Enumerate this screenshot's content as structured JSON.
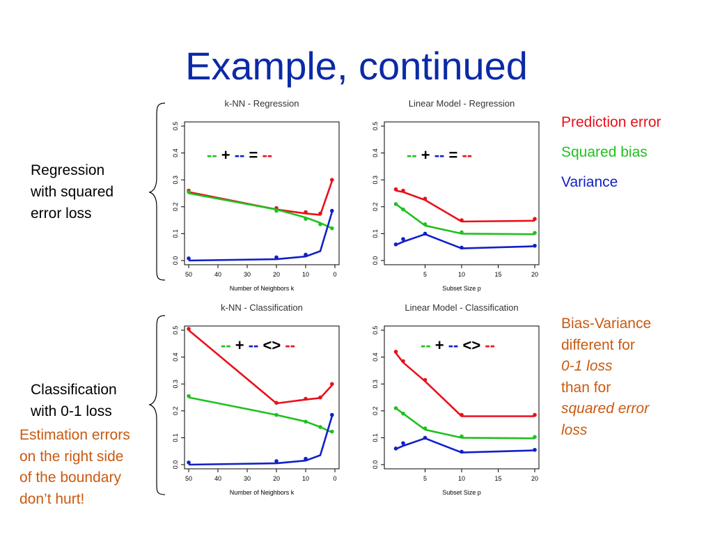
{
  "slide": {
    "title": "Example, continued",
    "row_labels": {
      "regression": [
        "Regression",
        "with squared",
        "error loss"
      ],
      "classification": [
        "Classification",
        "with 0-1 loss"
      ]
    },
    "estimation_note": [
      "Estimation errors",
      "on the right side",
      "of the boundary",
      "don’t hurt!"
    ],
    "legend": [
      {
        "label": "Prediction error",
        "color": "#e8111b"
      },
      {
        "label": "Squared bias",
        "color": "#1fc11f"
      },
      {
        "label": "Variance",
        "color": "#1020c8"
      }
    ],
    "bias_variance_note": {
      "line1": "Bias-Variance",
      "line2": "different for",
      "line3": "0-1 loss",
      "line4": "than for",
      "line5": "squared error",
      "line6": "loss"
    },
    "eq_symbols": {
      "dash": "--",
      "plus": "+",
      "equals": "=",
      "ne": "<>"
    }
  },
  "colors": {
    "prediction": "#e8111b",
    "bias": "#1fc11f",
    "variance": "#1020c8",
    "title": "#0b2aa6",
    "note": "#c85a11"
  },
  "chart_data": [
    {
      "id": "knn-reg",
      "type": "line",
      "title": "k-NN - Regression",
      "xlabel": "Number of Neighbors k",
      "ylabel": "",
      "xlim": [
        50,
        0
      ],
      "ylim": [
        0,
        0.5
      ],
      "xticks": [
        50,
        40,
        30,
        20,
        10,
        0
      ],
      "yticks": [
        0.0,
        0.1,
        0.2,
        0.3,
        0.4,
        0.5
      ],
      "equation": "=",
      "series": [
        {
          "color": "#e8111b",
          "line": [
            [
              50,
              0.255
            ],
            [
              20,
              0.19
            ],
            [
              10,
              0.175
            ],
            [
              5,
              0.17
            ],
            [
              1,
              0.295
            ]
          ],
          "points": [
            [
              50,
              0.26
            ],
            [
              20,
              0.195
            ],
            [
              10,
              0.18
            ],
            [
              5,
              0.175
            ],
            [
              1,
              0.3
            ]
          ]
        },
        {
          "color": "#1fc11f",
          "line": [
            [
              50,
              0.25
            ],
            [
              20,
              0.19
            ],
            [
              10,
              0.16
            ],
            [
              5,
              0.14
            ],
            [
              1,
              0.12
            ]
          ],
          "points": [
            [
              50,
              0.255
            ],
            [
              20,
              0.185
            ],
            [
              10,
              0.155
            ],
            [
              5,
              0.135
            ],
            [
              1,
              0.12
            ]
          ]
        },
        {
          "color": "#1020c8",
          "line": [
            [
              50,
              0.0
            ],
            [
              20,
              0.005
            ],
            [
              10,
              0.015
            ],
            [
              5,
              0.035
            ],
            [
              1,
              0.18
            ]
          ],
          "points": [
            [
              50,
              0.008
            ],
            [
              20,
              0.012
            ],
            [
              10,
              0.022
            ],
            [
              1,
              0.185
            ]
          ]
        }
      ]
    },
    {
      "id": "lin-reg",
      "type": "line",
      "title": "Linear Model - Regression",
      "xlabel": "Subset Size p",
      "ylabel": "",
      "xlim": [
        0,
        20
      ],
      "ylim": [
        0,
        0.5
      ],
      "xticks": [
        5,
        10,
        15,
        20
      ],
      "yticks": [
        0.0,
        0.1,
        0.2,
        0.3,
        0.4,
        0.5
      ],
      "equation": "=",
      "series": [
        {
          "color": "#e8111b",
          "line": [
            [
              1,
              0.26
            ],
            [
              2,
              0.255
            ],
            [
              5,
              0.225
            ],
            [
              10,
              0.145
            ],
            [
              20,
              0.148
            ]
          ],
          "points": [
            [
              1,
              0.265
            ],
            [
              2,
              0.26
            ],
            [
              5,
              0.23
            ],
            [
              10,
              0.15
            ],
            [
              20,
              0.155
            ]
          ]
        },
        {
          "color": "#1fc11f",
          "line": [
            [
              1,
              0.21
            ],
            [
              2,
              0.19
            ],
            [
              5,
              0.13
            ],
            [
              10,
              0.1
            ],
            [
              20,
              0.098
            ]
          ],
          "points": [
            [
              1,
              0.21
            ],
            [
              2,
              0.19
            ],
            [
              5,
              0.135
            ],
            [
              10,
              0.105
            ],
            [
              20,
              0.103
            ]
          ]
        },
        {
          "color": "#1020c8",
          "line": [
            [
              1,
              0.058
            ],
            [
              2,
              0.07
            ],
            [
              5,
              0.098
            ],
            [
              10,
              0.045
            ],
            [
              20,
              0.053
            ]
          ],
          "points": [
            [
              1,
              0.06
            ],
            [
              2,
              0.08
            ],
            [
              5,
              0.1
            ],
            [
              10,
              0.048
            ],
            [
              20,
              0.055
            ]
          ]
        }
      ]
    },
    {
      "id": "knn-cls",
      "type": "line",
      "title": "k-NN - Classification",
      "xlabel": "Number of Neighbors k",
      "ylabel": "",
      "xlim": [
        50,
        0
      ],
      "ylim": [
        0,
        0.5
      ],
      "xticks": [
        50,
        40,
        30,
        20,
        10,
        0
      ],
      "yticks": [
        0.0,
        0.1,
        0.2,
        0.3,
        0.4,
        0.5
      ],
      "equation": "<>",
      "series": [
        {
          "color": "#e8111b",
          "line": [
            [
              50,
              0.5
            ],
            [
              20,
              0.228
            ],
            [
              10,
              0.242
            ],
            [
              5,
              0.248
            ],
            [
              1,
              0.295
            ]
          ],
          "points": [
            [
              50,
              0.505
            ],
            [
              20,
              0.23
            ],
            [
              10,
              0.245
            ],
            [
              5,
              0.25
            ],
            [
              1,
              0.3
            ]
          ]
        },
        {
          "color": "#1fc11f",
          "line": [
            [
              50,
              0.25
            ],
            [
              20,
              0.185
            ],
            [
              10,
              0.16
            ],
            [
              5,
              0.14
            ],
            [
              1,
              0.12
            ]
          ],
          "points": [
            [
              50,
              0.255
            ],
            [
              20,
              0.185
            ],
            [
              10,
              0.16
            ],
            [
              5,
              0.14
            ],
            [
              1,
              0.123
            ]
          ]
        },
        {
          "color": "#1020c8",
          "line": [
            [
              50,
              0.0
            ],
            [
              20,
              0.005
            ],
            [
              10,
              0.015
            ],
            [
              5,
              0.035
            ],
            [
              1,
              0.18
            ]
          ],
          "points": [
            [
              50,
              0.008
            ],
            [
              20,
              0.013
            ],
            [
              10,
              0.022
            ],
            [
              1,
              0.185
            ]
          ]
        }
      ]
    },
    {
      "id": "lin-cls",
      "type": "line",
      "title": "Linear Model - Classification",
      "xlabel": "Subset Size p",
      "ylabel": "",
      "xlim": [
        0,
        20
      ],
      "ylim": [
        0,
        0.5
      ],
      "xticks": [
        5,
        10,
        15,
        20
      ],
      "yticks": [
        0.0,
        0.1,
        0.2,
        0.3,
        0.4,
        0.5
      ],
      "equation": "<>",
      "series": [
        {
          "color": "#e8111b",
          "line": [
            [
              1,
              0.415
            ],
            [
              2,
              0.38
            ],
            [
              5,
              0.31
            ],
            [
              10,
              0.18
            ],
            [
              20,
              0.18
            ]
          ],
          "points": [
            [
              1,
              0.42
            ],
            [
              2,
              0.385
            ],
            [
              5,
              0.315
            ],
            [
              10,
              0.185
            ],
            [
              20,
              0.185
            ]
          ]
        },
        {
          "color": "#1fc11f",
          "line": [
            [
              1,
              0.21
            ],
            [
              2,
              0.19
            ],
            [
              5,
              0.13
            ],
            [
              10,
              0.1
            ],
            [
              20,
              0.098
            ]
          ],
          "points": [
            [
              1,
              0.21
            ],
            [
              2,
              0.19
            ],
            [
              5,
              0.135
            ],
            [
              10,
              0.105
            ],
            [
              20,
              0.103
            ]
          ]
        },
        {
          "color": "#1020c8",
          "line": [
            [
              1,
              0.058
            ],
            [
              2,
              0.07
            ],
            [
              5,
              0.098
            ],
            [
              10,
              0.045
            ],
            [
              20,
              0.053
            ]
          ],
          "points": [
            [
              1,
              0.06
            ],
            [
              2,
              0.08
            ],
            [
              5,
              0.1
            ],
            [
              10,
              0.048
            ],
            [
              20,
              0.055
            ]
          ]
        }
      ]
    }
  ]
}
